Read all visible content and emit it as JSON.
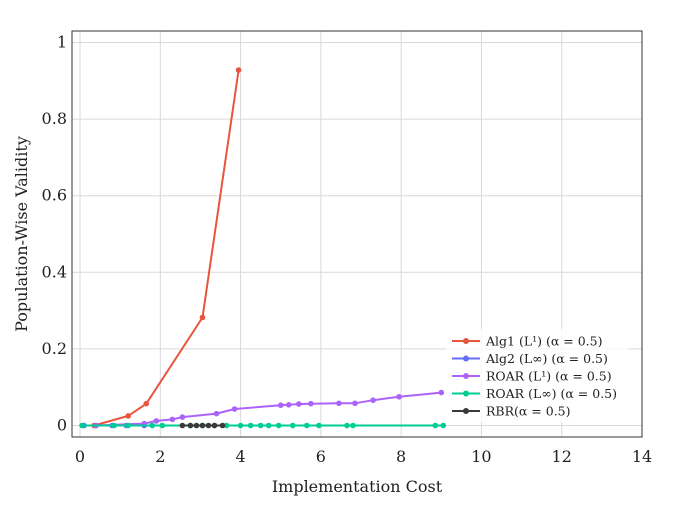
{
  "chart_data": {
    "type": "line",
    "title": "",
    "xlabel": "Implementation Cost",
    "ylabel": "Population-Wise Validity",
    "xlim": [
      -0.2,
      14
    ],
    "ylim": [
      -0.03,
      1.03
    ],
    "xticks": [
      0,
      2,
      4,
      6,
      8,
      10,
      12,
      14
    ],
    "xtick_labels": [
      "0",
      "2",
      "4",
      "6",
      "8",
      "10",
      "12",
      "14"
    ],
    "yticks": [
      0,
      0.2,
      0.4,
      0.6,
      0.8,
      1
    ],
    "ytick_labels": [
      "0",
      "0.2",
      "0.4",
      "0.6",
      "0.8",
      "1"
    ],
    "grid": true,
    "legend_position": "lower-right",
    "series": [
      {
        "name": "Alg1 (L¹) (α = 0.5)",
        "color": "#e8553f",
        "x": [
          0.35,
          1.2,
          1.65,
          3.05,
          3.95
        ],
        "y": [
          0.0,
          0.025,
          0.057,
          0.282,
          0.928
        ]
      },
      {
        "name": "Alg2 (L∞) (α = 0.5)",
        "color": "#636efa",
        "x": [
          0.1,
          0.4,
          0.8,
          1.15,
          1.6
        ],
        "y": [
          0,
          0,
          0,
          0,
          0
        ]
      },
      {
        "name": "ROAR (L¹) (α = 0.5)",
        "color": "#ab63fa",
        "x": [
          0.4,
          1.6,
          1.9,
          2.3,
          2.55,
          3.4,
          3.85,
          5.0,
          5.2,
          5.45,
          5.75,
          6.45,
          6.85,
          7.3,
          7.95,
          9.0
        ],
        "y": [
          0.0,
          0.005,
          0.012,
          0.016,
          0.022,
          0.031,
          0.043,
          0.053,
          0.054,
          0.056,
          0.057,
          0.058,
          0.058,
          0.066,
          0.075,
          0.086
        ]
      },
      {
        "name": "ROAR (L∞) (α = 0.5)",
        "color": "#00cc96",
        "x": [
          0.05,
          0.85,
          1.2,
          1.8,
          2.05,
          2.75,
          3.05,
          3.35,
          3.65,
          4.0,
          4.25,
          4.5,
          4.7,
          4.95,
          5.3,
          5.65,
          5.95,
          6.65,
          6.8,
          8.85,
          9.05
        ],
        "y": [
          0,
          0,
          0,
          0,
          0,
          0,
          0,
          0,
          0,
          0,
          0,
          0,
          0,
          0,
          0,
          0,
          0,
          0,
          0,
          0,
          0
        ]
      },
      {
        "name": "RBR(α = 0.5)",
        "color": "#3a3a3a",
        "x": [
          2.55,
          2.75,
          2.9,
          3.05,
          3.2,
          3.35,
          3.55
        ],
        "y": [
          0,
          0,
          0,
          0,
          0,
          0,
          0
        ]
      }
    ]
  }
}
